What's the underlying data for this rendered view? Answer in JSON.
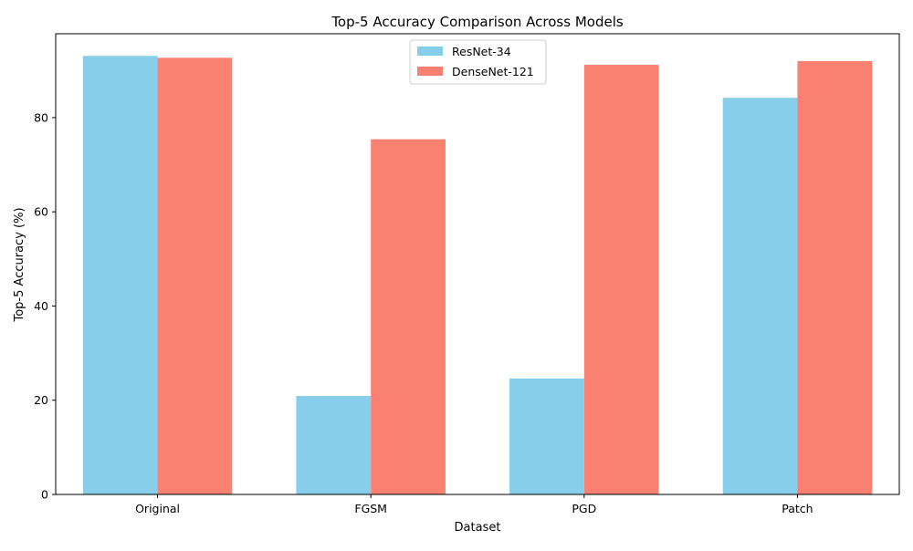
{
  "chart_data": {
    "type": "bar",
    "title": "Top-5 Accuracy Comparison Across Models",
    "xlabel": "Dataset",
    "ylabel": "Top-5 Accuracy (%)",
    "categories": [
      "Original",
      "FGSM",
      "PGD",
      "Patch"
    ],
    "series": [
      {
        "name": "ResNet-34",
        "color": "#87CEEB",
        "values": [
          93.1,
          20.9,
          24.6,
          84.2
        ]
      },
      {
        "name": "DenseNet-121",
        "color": "#FA8072",
        "values": [
          92.7,
          75.4,
          91.2,
          92.0
        ]
      }
    ],
    "ylim": [
      0,
      97.8
    ],
    "yticks": [
      0,
      20,
      40,
      60,
      80
    ],
    "legend_position": "top-center",
    "grid": false
  }
}
